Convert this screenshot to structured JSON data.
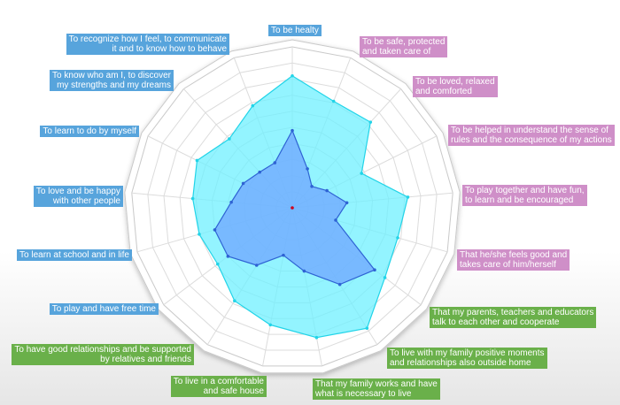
{
  "chart_data": {
    "type": "radar",
    "title": "",
    "grid": true,
    "r_max": 100,
    "rings": 10,
    "category_colors": {
      "blue": "#57a4dc",
      "pink": "#cf8fc8",
      "green": "#6ab04a"
    },
    "categories": [
      {
        "label": "To be healty",
        "group": "blue"
      },
      {
        "label": "To be safe, protected\nand taken care of",
        "group": "pink"
      },
      {
        "label": "To be loved, relaxed\nand comforted",
        "group": "pink"
      },
      {
        "label": "To be helped in understand the sense of\nrules and the consequence of my actions",
        "group": "pink"
      },
      {
        "label": "To play together and have fun,\nto learn and be encouraged",
        "group": "pink"
      },
      {
        "label": "That he/she feels good and\ntakes care of him/herself",
        "group": "pink"
      },
      {
        "label": "That my parents, teachers and educators\ntalk to each other and cooperate",
        "group": "green"
      },
      {
        "label": "To live with my family positive moments\nand relationships also outside home",
        "group": "green"
      },
      {
        "label": "That my family works and have\nwhat is necessary to live",
        "group": "green"
      },
      {
        "label": "To live in a comfortable\nand safe house",
        "group": "green"
      },
      {
        "label": "To have good relationships and be supported\nby relatives and friends",
        "group": "green"
      },
      {
        "label": "To play and have free time",
        "group": "blue"
      },
      {
        "label": "To learn at school and in life",
        "group": "blue"
      },
      {
        "label": "To love and be happy\nwith other people",
        "group": "blue"
      },
      {
        "label": "To learn to do by myself",
        "group": "blue"
      },
      {
        "label": "To know who am I, to discover\nmy strengths and my dreams",
        "group": "blue"
      },
      {
        "label": "To recognize how I feel, to communicate\nit and to know how to behave",
        "group": "blue"
      }
    ],
    "series": [
      {
        "values": [
          82,
          71,
          72,
          48,
          72,
          68,
          72,
          88,
          82,
          74,
          68,
          58,
          60,
          62,
          66,
          58,
          68
        ],
        "fill": "#6ff0ff",
        "stroke": "#22d4e8"
      },
      {
        "values": [
          48,
          26,
          18,
          24,
          34,
          28,
          64,
          56,
          40,
          30,
          42,
          50,
          50,
          38,
          34,
          30,
          30
        ],
        "fill": "#6fa6ff",
        "stroke": "#2f63d4"
      }
    ]
  }
}
